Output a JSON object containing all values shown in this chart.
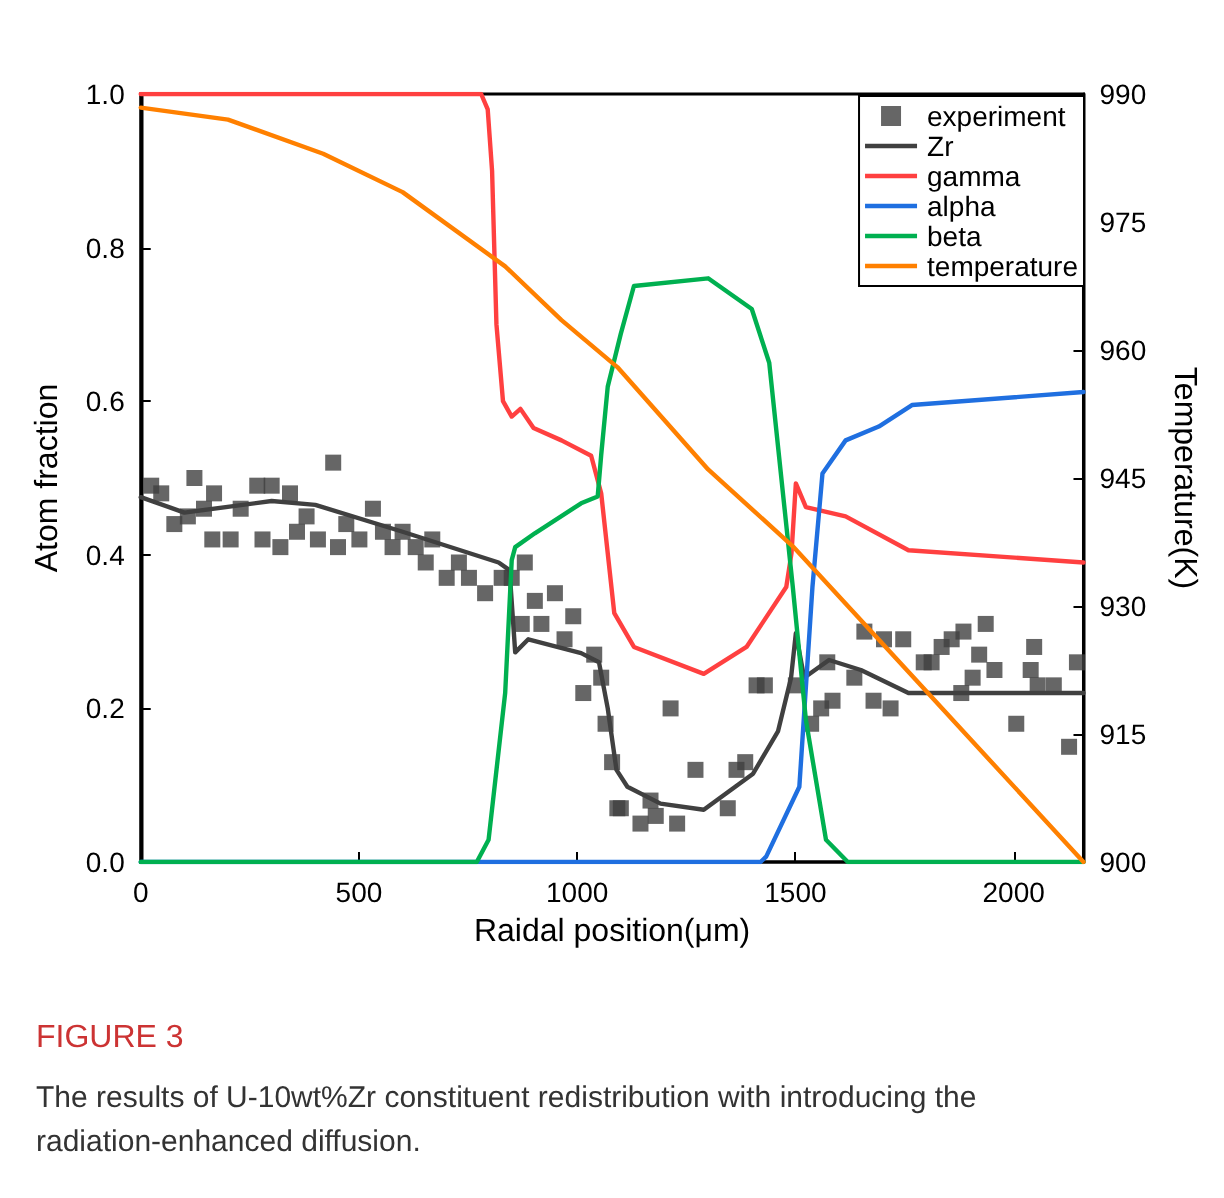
{
  "chart_data": {
    "type": "line",
    "xlabel": "Raidal position(μm)",
    "ylabel": "Atom fraction",
    "y2label": "Temperature(K)",
    "xlim": [
      0,
      2160
    ],
    "xticks": [
      0,
      500,
      1000,
      1500,
      2000
    ],
    "ylim": [
      0,
      1
    ],
    "yticks": [
      {
        "value": 0,
        "label": "0.0"
      },
      0.2,
      0.4,
      0.6,
      0.8,
      {
        "value": 1,
        "label": "1.0"
      }
    ],
    "y2lim": [
      900,
      990
    ],
    "y2ticks": [
      900,
      915,
      930,
      945,
      960,
      975,
      990
    ],
    "grid": false,
    "legend": "top right",
    "annotations": [
      "FIGURE 3",
      "The results of U-10wt%Zr constituent redistribution with introducing the radiation-enhanced diffusion."
    ],
    "series": [
      {
        "name": "experiment",
        "type": "scatter",
        "marker": "square",
        "color": "#404040",
        "x": [
          24,
          47,
          77,
          108,
          123,
          145,
          164,
          168,
          206,
          229,
          267,
          279,
          300,
          320,
          342,
          358,
          380,
          406,
          441,
          452,
          471,
          501,
          532,
          555,
          577,
          600,
          630,
          653,
          668,
          701,
          729,
          752,
          789,
          827,
          850,
          873,
          880,
          903,
          918,
          949,
          971,
          991,
          1014,
          1039,
          1055,
          1065,
          1080,
          1092,
          1100,
          1145,
          1168,
          1180,
          1214,
          1229,
          1271,
          1345,
          1365,
          1385,
          1411,
          1430,
          1501,
          1536,
          1559,
          1573,
          1585,
          1635,
          1658,
          1679,
          1703,
          1718,
          1747,
          1794,
          1812,
          1835,
          1858,
          1880,
          1885,
          1906,
          1921,
          1936,
          1956,
          2006,
          2039,
          2047,
          2055,
          2092,
          2127,
          2145
        ],
        "values": [
          0.49,
          0.48,
          0.44,
          0.45,
          0.5,
          0.46,
          0.42,
          0.48,
          0.42,
          0.46,
          0.49,
          0.42,
          0.49,
          0.41,
          0.48,
          0.43,
          0.45,
          0.42,
          0.52,
          0.41,
          0.44,
          0.42,
          0.46,
          0.43,
          0.41,
          0.43,
          0.41,
          0.39,
          0.42,
          0.37,
          0.39,
          0.37,
          0.35,
          0.37,
          0.37,
          0.31,
          0.39,
          0.34,
          0.31,
          0.35,
          0.29,
          0.32,
          0.22,
          0.27,
          0.24,
          0.18,
          0.13,
          0.07,
          0.07,
          0.05,
          0.08,
          0.06,
          0.2,
          0.05,
          0.12,
          0.07,
          0.12,
          0.13,
          0.23,
          0.23,
          0.23,
          0.18,
          0.2,
          0.26,
          0.21,
          0.24,
          0.3,
          0.21,
          0.29,
          0.2,
          0.29,
          0.26,
          0.26,
          0.28,
          0.29,
          0.22,
          0.3,
          0.24,
          0.27,
          0.31,
          0.25,
          0.18,
          0.25,
          0.28,
          0.23,
          0.23,
          0.15,
          0.26
        ]
      },
      {
        "name": "Zr",
        "marker": "none",
        "color": "#404040",
        "x": [
          0,
          100,
          300,
          400,
          600,
          820,
          845,
          858,
          888,
          1009,
          1050,
          1070,
          1090,
          1115,
          1191,
          1290,
          1403,
          1460,
          1490,
          1501,
          1520,
          1577,
          1650,
          1759,
          2160
        ],
        "values": [
          0.475,
          0.455,
          0.47,
          0.465,
          0.43,
          0.39,
          0.38,
          0.273,
          0.29,
          0.272,
          0.26,
          0.2,
          0.12,
          0.098,
          0.076,
          0.068,
          0.115,
          0.17,
          0.24,
          0.298,
          0.24,
          0.263,
          0.25,
          0.22,
          0.22
        ]
      },
      {
        "name": "gamma",
        "marker": "none",
        "color": "#ff4040",
        "x": [
          0,
          780,
          795,
          805,
          815,
          830,
          850,
          870,
          900,
          964,
          1032,
          1055,
          1085,
          1130,
          1290,
          1388,
          1479,
          1491,
          1501,
          1524,
          1615,
          1759,
          2160
        ],
        "values": [
          1,
          1,
          0.98,
          0.9,
          0.7,
          0.6,
          0.58,
          0.59,
          0.565,
          0.549,
          0.529,
          0.48,
          0.324,
          0.28,
          0.245,
          0.28,
          0.358,
          0.402,
          0.493,
          0.462,
          0.45,
          0.406,
          0.39
        ]
      },
      {
        "name": "alpha",
        "marker": "none",
        "color": "#1f6fe0",
        "x": [
          0,
          1420,
          1433,
          1509,
          1539,
          1562,
          1615,
          1691,
          1767,
          2160
        ],
        "values": [
          0,
          0,
          0.007,
          0.098,
          0.358,
          0.506,
          0.549,
          0.567,
          0.595,
          0.612
        ]
      },
      {
        "name": "beta",
        "marker": "none",
        "color": "#00b050",
        "x": [
          0,
          770,
          797,
          835,
          850,
          858,
          903,
          1009,
          1047,
          1055,
          1070,
          1100,
          1130,
          1300,
          1400,
          1440,
          1494,
          1524,
          1570,
          1620,
          2160
        ],
        "values": [
          0,
          0,
          0.029,
          0.22,
          0.393,
          0.41,
          0.428,
          0.467,
          0.476,
          0.53,
          0.619,
          0.688,
          0.75,
          0.76,
          0.72,
          0.65,
          0.358,
          0.185,
          0.029,
          0,
          0
        ]
      },
      {
        "name": "temperature",
        "marker": "none",
        "axis": "y2",
        "color": "#ff8000",
        "x": [
          0,
          200,
          418,
          600,
          835,
          964,
          1092,
          1300,
          1494,
          1782,
          2160
        ],
        "values": [
          988.4,
          987,
          983,
          978.5,
          969.8,
          963.5,
          958,
          946,
          937,
          921,
          900
        ]
      }
    ]
  }
}
